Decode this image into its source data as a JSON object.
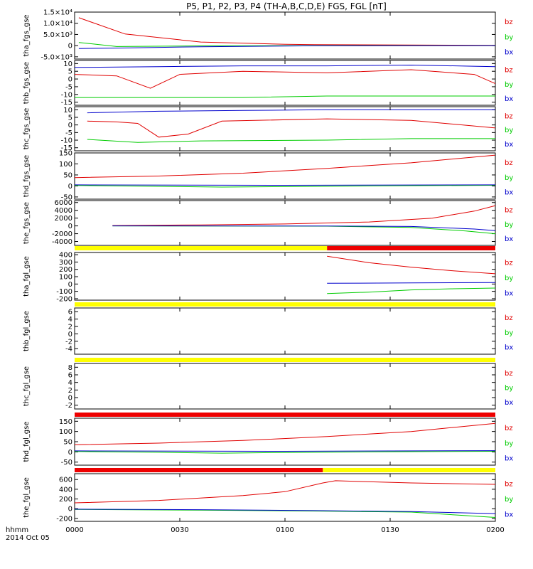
{
  "title": "P5, P1, P2, P3, P4 (TH-A,B,C,D,E) FGS, FGL [nT]",
  "date_label": "2014 Oct 05",
  "time_label": "hhmm",
  "x_ticks": [
    "0000",
    "0030",
    "0100",
    "0130",
    "0200"
  ],
  "colors": {
    "bz": "#e00000",
    "by": "#00cc00",
    "bx": "#0000cc",
    "bar_yellow": "#ffff00",
    "bar_red": "#ee0000",
    "frame": "#000000"
  },
  "chart_data": [
    {
      "type": "line",
      "ylabel": "tha_fgs_gse",
      "ylim": [
        -6000,
        15000
      ],
      "tick_values": [
        -5000,
        0,
        5000,
        10000,
        15000
      ],
      "tick_labels": [
        "-5.0×10³",
        "0",
        "5.0×10³",
        "1.0×10⁴",
        "1.5×10⁴"
      ],
      "legend": [
        "bz",
        "by",
        "bx"
      ],
      "series": [
        {
          "name": "bz",
          "points": [
            [
              0.01,
              12500
            ],
            [
              0.12,
              5200
            ],
            [
              0.3,
              1600
            ],
            [
              0.5,
              600
            ],
            [
              0.57,
              450
            ],
            [
              1.0,
              150
            ]
          ]
        },
        {
          "name": "by",
          "points": [
            [
              0.01,
              1400
            ],
            [
              0.1,
              -400
            ],
            [
              0.3,
              -100
            ],
            [
              0.57,
              0
            ],
            [
              1.0,
              0
            ]
          ]
        },
        {
          "name": "bx",
          "points": [
            [
              0.01,
              -1300
            ],
            [
              0.1,
              -1100
            ],
            [
              0.3,
              -500
            ],
            [
              0.57,
              -80
            ],
            [
              1.0,
              0
            ]
          ]
        }
      ],
      "bars": []
    },
    {
      "type": "line",
      "ylabel": "thb_fgs_gse",
      "ylim": [
        -17,
        12
      ],
      "tick_values": [
        -15,
        -10,
        -5,
        0,
        5,
        10
      ],
      "tick_labels": [
        "-15",
        "-10",
        "-5",
        "0",
        "5",
        "10"
      ],
      "legend": [
        "bz",
        "by",
        "bx"
      ],
      "series": [
        {
          "name": "bz",
          "points": [
            [
              0.0,
              3
            ],
            [
              0.1,
              2
            ],
            [
              0.18,
              -6
            ],
            [
              0.25,
              3
            ],
            [
              0.4,
              5
            ],
            [
              0.6,
              4
            ],
            [
              0.8,
              6
            ],
            [
              0.95,
              3
            ],
            [
              1.0,
              -3
            ]
          ]
        },
        {
          "name": "by",
          "points": [
            [
              0.0,
              -12
            ],
            [
              0.2,
              -12
            ],
            [
              0.4,
              -12
            ],
            [
              0.6,
              -11
            ],
            [
              0.8,
              -11
            ],
            [
              1.0,
              -11
            ]
          ]
        },
        {
          "name": "bx",
          "points": [
            [
              0.0,
              7.5
            ],
            [
              0.2,
              8
            ],
            [
              0.4,
              8.5
            ],
            [
              0.6,
              8.5
            ],
            [
              0.8,
              9
            ],
            [
              1.0,
              8
            ]
          ]
        }
      ],
      "bars": []
    },
    {
      "type": "line",
      "ylabel": "thc_fgs_gse",
      "ylim": [
        -17,
        12
      ],
      "tick_values": [
        -15,
        -10,
        -5,
        0,
        5,
        10
      ],
      "tick_labels": [
        "-15",
        "-10",
        "-5",
        "0",
        "5",
        "10"
      ],
      "legend": [
        "bz",
        "by",
        "bx"
      ],
      "series": [
        {
          "name": "bz",
          "points": [
            [
              0.03,
              2.5
            ],
            [
              0.1,
              2
            ],
            [
              0.15,
              1
            ],
            [
              0.2,
              -8
            ],
            [
              0.27,
              -6
            ],
            [
              0.35,
              2.5
            ],
            [
              0.6,
              4
            ],
            [
              0.8,
              3
            ],
            [
              1.0,
              -2
            ]
          ]
        },
        {
          "name": "by",
          "points": [
            [
              0.03,
              -9.5
            ],
            [
              0.15,
              -11.5
            ],
            [
              0.3,
              -10.5
            ],
            [
              0.6,
              -10
            ],
            [
              0.8,
              -9
            ],
            [
              1.0,
              -9
            ]
          ]
        },
        {
          "name": "bx",
          "points": [
            [
              0.03,
              8
            ],
            [
              0.2,
              9
            ],
            [
              0.4,
              9.5
            ],
            [
              0.6,
              10
            ],
            [
              0.8,
              10
            ],
            [
              1.0,
              10
            ]
          ]
        }
      ],
      "bars": []
    },
    {
      "type": "line",
      "ylabel": "thd_fgs_gse",
      "ylim": [
        -60,
        150
      ],
      "tick_values": [
        -50,
        0,
        50,
        100,
        150
      ],
      "tick_labels": [
        "-50",
        "0",
        "50",
        "100",
        "150"
      ],
      "legend": [
        "bz",
        "by",
        "bx"
      ],
      "series": [
        {
          "name": "bz",
          "points": [
            [
              0.0,
              38
            ],
            [
              0.2,
              45
            ],
            [
              0.4,
              58
            ],
            [
              0.6,
              80
            ],
            [
              0.8,
              105
            ],
            [
              1.0,
              140
            ]
          ]
        },
        {
          "name": "by",
          "points": [
            [
              0.0,
              2
            ],
            [
              0.2,
              -2
            ],
            [
              0.35,
              -5
            ],
            [
              0.5,
              -3
            ],
            [
              0.7,
              0
            ],
            [
              1.0,
              3
            ]
          ]
        },
        {
          "name": "bx",
          "points": [
            [
              0.0,
              5
            ],
            [
              0.5,
              3
            ],
            [
              1.0,
              5
            ]
          ]
        }
      ],
      "bars": []
    },
    {
      "type": "line",
      "ylabel": "the_fgs_gse",
      "ylim": [
        -5000,
        6500
      ],
      "tick_values": [
        -4000,
        -2000,
        0,
        2000,
        4000,
        6000
      ],
      "tick_labels": [
        "-4000",
        "-2000",
        "0",
        "2000",
        "4000",
        "6000"
      ],
      "legend": [
        "bz",
        "by",
        "bx"
      ],
      "series": [
        {
          "name": "bz",
          "points": [
            [
              0.09,
              100
            ],
            [
              0.3,
              250
            ],
            [
              0.5,
              500
            ],
            [
              0.7,
              1000
            ],
            [
              0.85,
              2000
            ],
            [
              0.95,
              3800
            ],
            [
              1.0,
              5200
            ]
          ]
        },
        {
          "name": "by",
          "points": [
            [
              0.09,
              0
            ],
            [
              0.6,
              -80
            ],
            [
              0.8,
              -400
            ],
            [
              0.93,
              -1300
            ],
            [
              1.0,
              -2000
            ]
          ]
        },
        {
          "name": "bx",
          "points": [
            [
              0.09,
              0
            ],
            [
              0.6,
              -30
            ],
            [
              0.8,
              -150
            ],
            [
              0.95,
              -800
            ],
            [
              1.0,
              -1200
            ]
          ]
        }
      ],
      "bars": [
        {
          "color": "yellow",
          "from": 0.0,
          "to": 0.6
        },
        {
          "color": "red",
          "from": 0.6,
          "to": 1.0
        }
      ]
    },
    {
      "type": "line",
      "ylabel": "tha_fgl_gse",
      "ylim": [
        -220,
        430
      ],
      "tick_values": [
        -200,
        -100,
        0,
        100,
        200,
        300,
        400
      ],
      "tick_labels": [
        "-200",
        "-100",
        "0",
        "100",
        "200",
        "300",
        "400"
      ],
      "legend": [
        "bz",
        "by",
        "bx"
      ],
      "series": [
        {
          "name": "bz",
          "points": [
            [
              0.6,
              380
            ],
            [
              0.7,
              290
            ],
            [
              0.8,
              230
            ],
            [
              0.9,
              180
            ],
            [
              1.0,
              140
            ]
          ]
        },
        {
          "name": "by",
          "points": [
            [
              0.6,
              -130
            ],
            [
              0.7,
              -110
            ],
            [
              0.8,
              -80
            ],
            [
              0.9,
              -65
            ],
            [
              1.0,
              -55
            ]
          ]
        },
        {
          "name": "bx",
          "points": [
            [
              0.6,
              10
            ],
            [
              0.8,
              15
            ],
            [
              1.0,
              20
            ]
          ]
        }
      ],
      "bars": [
        {
          "color": "yellow",
          "from": 0.0,
          "to": 1.0
        }
      ]
    },
    {
      "type": "line",
      "ylabel": "thb_fgl_gse",
      "ylim": [
        -5.5,
        7
      ],
      "tick_values": [
        -4,
        -2,
        0,
        2,
        4,
        6
      ],
      "tick_labels": [
        "-4",
        "-2",
        "0",
        "2",
        "4",
        "6"
      ],
      "legend": [
        "bz",
        "by",
        "bx"
      ],
      "series": [],
      "bars": [
        {
          "color": "yellow",
          "from": 0.0,
          "to": 1.0
        }
      ]
    },
    {
      "type": "line",
      "ylabel": "thc_fgl_gse",
      "ylim": [
        -3,
        9
      ],
      "tick_values": [
        -2,
        0,
        2,
        4,
        6,
        8
      ],
      "tick_labels": [
        "-2",
        "0",
        "2",
        "4",
        "6",
        "8"
      ],
      "legend": [
        "bz",
        "by",
        "bx"
      ],
      "series": [],
      "bars": [
        {
          "color": "red",
          "from": 0.0,
          "to": 1.0
        }
      ]
    },
    {
      "type": "line",
      "ylabel": "thd_fgl_gse",
      "ylim": [
        -65,
        165
      ],
      "tick_values": [
        -50,
        0,
        50,
        100,
        150
      ],
      "tick_labels": [
        "-50",
        "0",
        "50",
        "100",
        "150"
      ],
      "legend": [
        "bz",
        "by",
        "bx"
      ],
      "series": [
        {
          "name": "bz",
          "points": [
            [
              0.0,
              35
            ],
            [
              0.2,
              43
            ],
            [
              0.4,
              56
            ],
            [
              0.6,
              75
            ],
            [
              0.8,
              100
            ],
            [
              1.0,
              140
            ]
          ]
        },
        {
          "name": "by",
          "points": [
            [
              0.0,
              2
            ],
            [
              0.2,
              -2
            ],
            [
              0.35,
              -6
            ],
            [
              0.5,
              -3
            ],
            [
              0.7,
              0
            ],
            [
              1.0,
              3
            ]
          ]
        },
        {
          "name": "bx",
          "points": [
            [
              0.0,
              5
            ],
            [
              0.5,
              3
            ],
            [
              1.0,
              6
            ]
          ]
        }
      ],
      "bars": [
        {
          "color": "red",
          "from": 0.0,
          "to": 0.59
        },
        {
          "color": "yellow",
          "from": 0.59,
          "to": 1.0
        }
      ]
    },
    {
      "type": "line",
      "ylabel": "the_fgl_gse",
      "ylim": [
        -260,
        720
      ],
      "tick_values": [
        -200,
        0,
        200,
        400,
        600
      ],
      "tick_labels": [
        "-200",
        "0",
        "200",
        "400",
        "600"
      ],
      "legend": [
        "bz",
        "by",
        "bx"
      ],
      "series": [
        {
          "name": "bz",
          "points": [
            [
              0.0,
              120
            ],
            [
              0.2,
              170
            ],
            [
              0.4,
              270
            ],
            [
              0.5,
              350
            ],
            [
              0.59,
              530
            ],
            [
              0.62,
              575
            ],
            [
              0.8,
              530
            ],
            [
              1.0,
              500
            ]
          ]
        },
        {
          "name": "by",
          "points": [
            [
              0.0,
              -15
            ],
            [
              0.3,
              -30
            ],
            [
              0.59,
              -50
            ],
            [
              0.8,
              -70
            ],
            [
              1.0,
              -180
            ]
          ]
        },
        {
          "name": "bx",
          "points": [
            [
              0.0,
              -10
            ],
            [
              0.3,
              -20
            ],
            [
              0.59,
              -40
            ],
            [
              0.8,
              -60
            ],
            [
              1.0,
              -100
            ]
          ]
        }
      ],
      "bars": []
    }
  ]
}
